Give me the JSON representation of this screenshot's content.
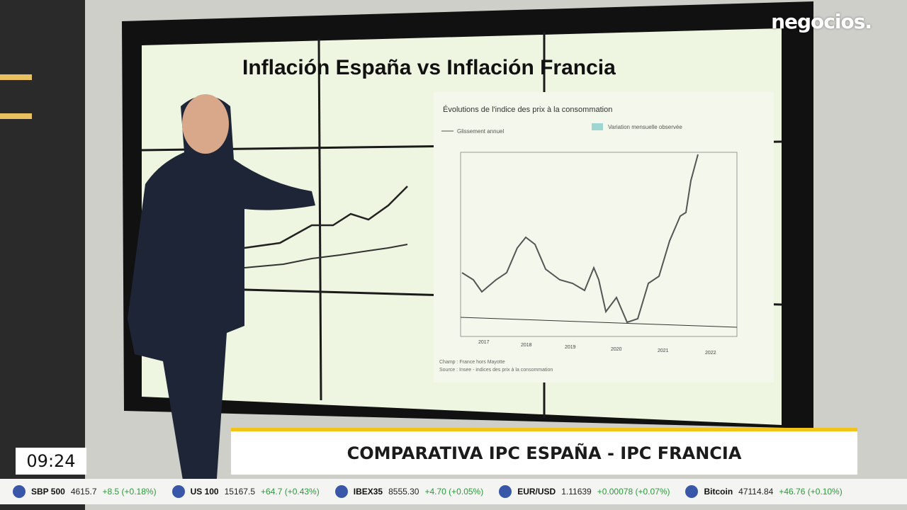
{
  "logo": "negocios.",
  "screen": {
    "title": "Inflación España vs Inflación Francia",
    "french_chart": {
      "title": "Évolutions de l'indice des prix à la consommation",
      "legend": [
        "Glissement annuel",
        "Variation mensuelle observée"
      ],
      "years": [
        "2017",
        "2018",
        "2019",
        "2020",
        "2021",
        "2022"
      ],
      "field": "Champ : France hors Mayotte",
      "source": "Source : Insee - indices des prix à la consommation"
    }
  },
  "lower_third": "COMPARATIVA IPC ESPAÑA - IPC FRANCIA",
  "clock": "09:24",
  "ticker": [
    {
      "name": "SBP 500",
      "value": "4615.7",
      "change": "+8.5 (+0.18%)"
    },
    {
      "name": "US 100",
      "value": "15167.5",
      "change": "+64.7 (+0.43%)"
    },
    {
      "name": "IBEX35",
      "value": "8555.30",
      "change": "+4.70 (+0.05%)"
    },
    {
      "name": "EUR/USD",
      "value": "1.11639",
      "change": "+0.00078 (+0.07%)"
    },
    {
      "name": "Bitcoin",
      "value": "47114.84",
      "change": "+46.76 (+0.10%)"
    }
  ]
}
